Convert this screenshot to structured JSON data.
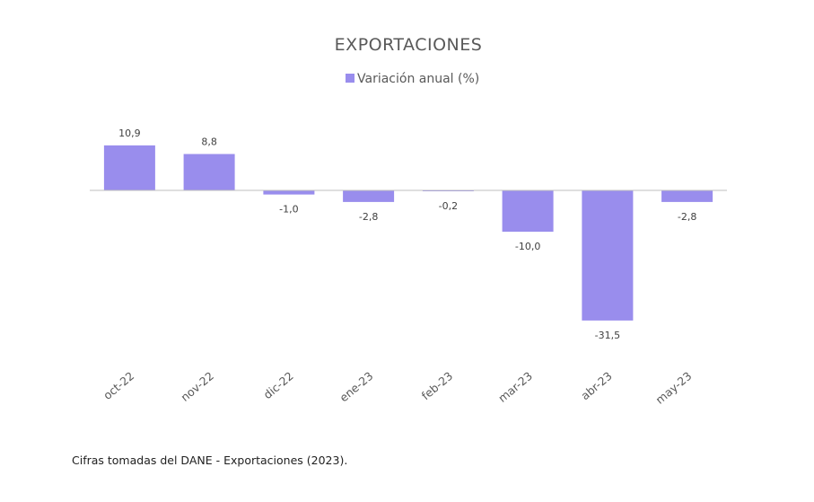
{
  "chart_data": {
    "type": "bar",
    "title": "EXPORTACIONES",
    "categories": [
      "oct-22",
      "nov-22",
      "dic-22",
      "ene-23",
      "feb-23",
      "mar-23",
      "abr-23",
      "may-23"
    ],
    "series": [
      {
        "name": "Variación anual (%)",
        "values": [
          10.9,
          8.8,
          -1.0,
          -2.8,
          -0.2,
          -10.0,
          -31.5,
          -2.8
        ],
        "labels": [
          "10,9",
          "8,8",
          "-1,0",
          "-2,8",
          "-0,2",
          "-10,0",
          "-31,5",
          "-2,8"
        ],
        "color": "#998ded"
      }
    ],
    "xlabel": "",
    "ylabel": "",
    "ylim": [
      -35,
      20
    ],
    "grid": false,
    "legend": "top-center"
  },
  "footer": {
    "source": "Cifras tomadas del DANE - Exportaciones (2023)."
  },
  "colors": {
    "bar": "#998ded",
    "axis": "#bfbfbf"
  }
}
